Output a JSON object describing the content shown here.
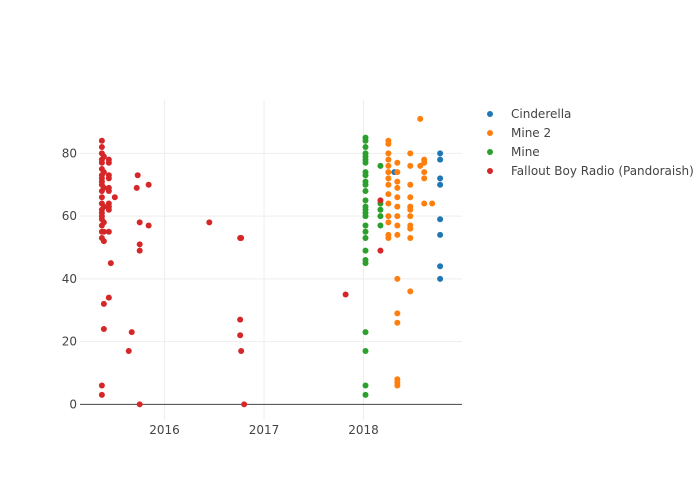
{
  "chart_data": {
    "type": "scatter",
    "title": "",
    "xlabel": "",
    "ylabel": "",
    "xlim": [
      2015.15,
      2018.99
    ],
    "ylim": [
      -5,
      97
    ],
    "x_ticks": [
      {
        "value": 2016.0,
        "label": "2016"
      },
      {
        "value": 2017.0,
        "label": "2017"
      },
      {
        "value": 2018.0,
        "label": "2018"
      }
    ],
    "y_ticks": [
      {
        "value": 0,
        "label": "0"
      },
      {
        "value": 20,
        "label": "20"
      },
      {
        "value": 40,
        "label": "40"
      },
      {
        "value": 60,
        "label": "60"
      },
      {
        "value": 80,
        "label": "80"
      }
    ],
    "grid": true,
    "legend_position": "top-right",
    "series": [
      {
        "name": "Cinderella",
        "color": "#1f77b4",
        "points": [
          {
            "x": 2018.77,
            "y": 80
          },
          {
            "x": 2018.77,
            "y": 78
          },
          {
            "x": 2018.77,
            "y": 72
          },
          {
            "x": 2018.77,
            "y": 70
          },
          {
            "x": 2018.77,
            "y": 59
          },
          {
            "x": 2018.77,
            "y": 54
          },
          {
            "x": 2018.77,
            "y": 44
          },
          {
            "x": 2018.77,
            "y": 40
          },
          {
            "x": 2018.31,
            "y": 74
          }
        ]
      },
      {
        "name": "Mine 2",
        "color": "#ff7f0e",
        "points": [
          {
            "x": 2018.25,
            "y": 84
          },
          {
            "x": 2018.25,
            "y": 83
          },
          {
            "x": 2018.25,
            "y": 80
          },
          {
            "x": 2018.25,
            "y": 78
          },
          {
            "x": 2018.25,
            "y": 76
          },
          {
            "x": 2018.25,
            "y": 74
          },
          {
            "x": 2018.25,
            "y": 72
          },
          {
            "x": 2018.25,
            "y": 70
          },
          {
            "x": 2018.25,
            "y": 67
          },
          {
            "x": 2018.25,
            "y": 64
          },
          {
            "x": 2018.25,
            "y": 60
          },
          {
            "x": 2018.25,
            "y": 58
          },
          {
            "x": 2018.25,
            "y": 54
          },
          {
            "x": 2018.25,
            "y": 53
          },
          {
            "x": 2018.34,
            "y": 77
          },
          {
            "x": 2018.34,
            "y": 74
          },
          {
            "x": 2018.34,
            "y": 71
          },
          {
            "x": 2018.34,
            "y": 69
          },
          {
            "x": 2018.34,
            "y": 66
          },
          {
            "x": 2018.34,
            "y": 63
          },
          {
            "x": 2018.34,
            "y": 60
          },
          {
            "x": 2018.34,
            "y": 57
          },
          {
            "x": 2018.34,
            "y": 54
          },
          {
            "x": 2018.34,
            "y": 40
          },
          {
            "x": 2018.34,
            "y": 29
          },
          {
            "x": 2018.34,
            "y": 26
          },
          {
            "x": 2018.34,
            "y": 8
          },
          {
            "x": 2018.34,
            "y": 7
          },
          {
            "x": 2018.34,
            "y": 6
          },
          {
            "x": 2018.47,
            "y": 80
          },
          {
            "x": 2018.47,
            "y": 76
          },
          {
            "x": 2018.47,
            "y": 70
          },
          {
            "x": 2018.47,
            "y": 66
          },
          {
            "x": 2018.47,
            "y": 63
          },
          {
            "x": 2018.47,
            "y": 62
          },
          {
            "x": 2018.47,
            "y": 60
          },
          {
            "x": 2018.47,
            "y": 57
          },
          {
            "x": 2018.47,
            "y": 56
          },
          {
            "x": 2018.47,
            "y": 53
          },
          {
            "x": 2018.47,
            "y": 36
          },
          {
            "x": 2018.57,
            "y": 91
          },
          {
            "x": 2018.57,
            "y": 76
          },
          {
            "x": 2018.61,
            "y": 78
          },
          {
            "x": 2018.61,
            "y": 77
          },
          {
            "x": 2018.61,
            "y": 74
          },
          {
            "x": 2018.61,
            "y": 72
          },
          {
            "x": 2018.61,
            "y": 64
          },
          {
            "x": 2018.69,
            "y": 64
          }
        ]
      },
      {
        "name": "Mine",
        "color": "#2ca02c",
        "points": [
          {
            "x": 2018.02,
            "y": 85
          },
          {
            "x": 2018.02,
            "y": 84
          },
          {
            "x": 2018.02,
            "y": 82
          },
          {
            "x": 2018.02,
            "y": 80
          },
          {
            "x": 2018.02,
            "y": 79
          },
          {
            "x": 2018.02,
            "y": 78
          },
          {
            "x": 2018.02,
            "y": 77
          },
          {
            "x": 2018.02,
            "y": 74
          },
          {
            "x": 2018.02,
            "y": 73
          },
          {
            "x": 2018.02,
            "y": 71
          },
          {
            "x": 2018.02,
            "y": 70
          },
          {
            "x": 2018.02,
            "y": 68
          },
          {
            "x": 2018.02,
            "y": 65
          },
          {
            "x": 2018.02,
            "y": 63
          },
          {
            "x": 2018.02,
            "y": 62
          },
          {
            "x": 2018.02,
            "y": 61
          },
          {
            "x": 2018.02,
            "y": 60
          },
          {
            "x": 2018.02,
            "y": 57
          },
          {
            "x": 2018.02,
            "y": 55
          },
          {
            "x": 2018.02,
            "y": 53
          },
          {
            "x": 2018.02,
            "y": 49
          },
          {
            "x": 2018.02,
            "y": 46
          },
          {
            "x": 2018.02,
            "y": 45
          },
          {
            "x": 2018.02,
            "y": 23
          },
          {
            "x": 2018.02,
            "y": 17
          },
          {
            "x": 2018.02,
            "y": 6
          },
          {
            "x": 2018.02,
            "y": 3
          },
          {
            "x": 2018.17,
            "y": 76
          },
          {
            "x": 2018.17,
            "y": 64
          },
          {
            "x": 2018.17,
            "y": 62
          },
          {
            "x": 2018.17,
            "y": 60
          },
          {
            "x": 2018.17,
            "y": 57
          }
        ]
      },
      {
        "name": "Fallout Boy Radio (Pandoraish)",
        "color": "#d62728",
        "points": [
          {
            "x": 2015.37,
            "y": 84
          },
          {
            "x": 2015.37,
            "y": 82
          },
          {
            "x": 2015.37,
            "y": 80
          },
          {
            "x": 2015.37,
            "y": 78
          },
          {
            "x": 2015.37,
            "y": 77
          },
          {
            "x": 2015.37,
            "y": 75
          },
          {
            "x": 2015.37,
            "y": 73
          },
          {
            "x": 2015.37,
            "y": 72
          },
          {
            "x": 2015.37,
            "y": 71
          },
          {
            "x": 2015.37,
            "y": 70
          },
          {
            "x": 2015.37,
            "y": 68
          },
          {
            "x": 2015.37,
            "y": 66
          },
          {
            "x": 2015.37,
            "y": 64
          },
          {
            "x": 2015.37,
            "y": 62
          },
          {
            "x": 2015.37,
            "y": 61
          },
          {
            "x": 2015.37,
            "y": 60
          },
          {
            "x": 2015.37,
            "y": 59
          },
          {
            "x": 2015.37,
            "y": 57
          },
          {
            "x": 2015.37,
            "y": 55
          },
          {
            "x": 2015.37,
            "y": 53
          },
          {
            "x": 2015.37,
            "y": 6
          },
          {
            "x": 2015.37,
            "y": 3
          },
          {
            "x": 2015.39,
            "y": 79
          },
          {
            "x": 2015.39,
            "y": 74
          },
          {
            "x": 2015.39,
            "y": 69
          },
          {
            "x": 2015.39,
            "y": 63
          },
          {
            "x": 2015.39,
            "y": 58
          },
          {
            "x": 2015.39,
            "y": 55
          },
          {
            "x": 2015.39,
            "y": 52
          },
          {
            "x": 2015.39,
            "y": 32
          },
          {
            "x": 2015.39,
            "y": 24
          },
          {
            "x": 2015.44,
            "y": 78
          },
          {
            "x": 2015.44,
            "y": 77
          },
          {
            "x": 2015.44,
            "y": 73
          },
          {
            "x": 2015.44,
            "y": 72
          },
          {
            "x": 2015.44,
            "y": 69
          },
          {
            "x": 2015.44,
            "y": 68
          },
          {
            "x": 2015.44,
            "y": 64
          },
          {
            "x": 2015.44,
            "y": 63
          },
          {
            "x": 2015.44,
            "y": 62
          },
          {
            "x": 2015.44,
            "y": 55
          },
          {
            "x": 2015.44,
            "y": 34
          },
          {
            "x": 2015.46,
            "y": 45
          },
          {
            "x": 2015.5,
            "y": 66
          },
          {
            "x": 2015.64,
            "y": 17
          },
          {
            "x": 2015.67,
            "y": 23
          },
          {
            "x": 2015.72,
            "y": 69
          },
          {
            "x": 2015.73,
            "y": 73
          },
          {
            "x": 2015.75,
            "y": 58
          },
          {
            "x": 2015.75,
            "y": 51
          },
          {
            "x": 2015.75,
            "y": 49
          },
          {
            "x": 2015.75,
            "y": 0
          },
          {
            "x": 2015.84,
            "y": 70
          },
          {
            "x": 2015.84,
            "y": 57
          },
          {
            "x": 2016.45,
            "y": 58
          },
          {
            "x": 2016.76,
            "y": 53
          },
          {
            "x": 2016.77,
            "y": 53
          },
          {
            "x": 2016.76,
            "y": 27
          },
          {
            "x": 2016.76,
            "y": 22
          },
          {
            "x": 2016.77,
            "y": 17
          },
          {
            "x": 2016.8,
            "y": 0
          },
          {
            "x": 2017.82,
            "y": 35
          },
          {
            "x": 2018.17,
            "y": 65
          },
          {
            "x": 2018.17,
            "y": 49
          }
        ]
      }
    ]
  }
}
